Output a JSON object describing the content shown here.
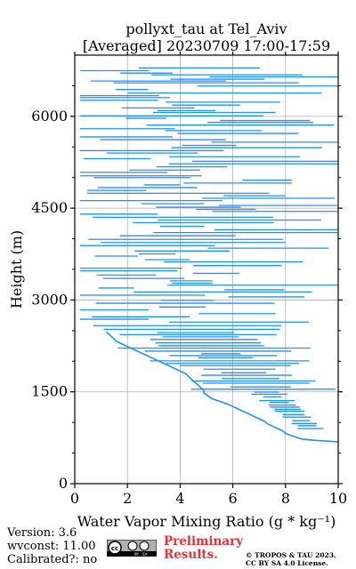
{
  "chart_data": {
    "type": "line",
    "title": "pollyxt_tau at Tel_Aviv",
    "subtitle": "[Averaged] 20230709 17:00-17:59",
    "xlabel": "Water Vapor Mixing Ratio",
    "xlabel_unit": "(g * kg⁻¹)",
    "ylabel": "Height (m)",
    "xlim": [
      0,
      10
    ],
    "ylim": [
      0,
      7000
    ],
    "xticks": [
      "0",
      "2",
      "4",
      "6",
      "8",
      "10"
    ],
    "yticks": [
      "0",
      "1500",
      "3000",
      "4500",
      "6000"
    ],
    "grid": true,
    "series_color": "#1e90ff",
    "series": [
      {
        "style": "line",
        "x": [
          10.0,
          9.8,
          9.4,
          9.0,
          8.6,
          8.4,
          8.2,
          8.0,
          7.9,
          7.7,
          7.5,
          7.3,
          7.2,
          7.0,
          6.8,
          6.6,
          6.4,
          6.2,
          6.0,
          5.8,
          5.6,
          5.4,
          5.2,
          5.1,
          5.0,
          4.9,
          4.9,
          4.8,
          4.7,
          4.6,
          4.5,
          4.4,
          4.3,
          4.2,
          4.0,
          3.8,
          3.6,
          3.4,
          3.2,
          3.0,
          2.8,
          2.6,
          2.4,
          2.2,
          2.0,
          1.8,
          1.6,
          1.5,
          1.4,
          1.3,
          1.2
        ],
        "y": [
          680,
          690,
          700,
          710,
          730,
          760,
          790,
          820,
          860,
          900,
          940,
          980,
          1020,
          1060,
          1100,
          1140,
          1180,
          1220,
          1260,
          1300,
          1330,
          1360,
          1390,
          1420,
          1450,
          1480,
          1520,
          1560,
          1600,
          1640,
          1680,
          1720,
          1760,
          1800,
          1840,
          1880,
          1920,
          1960,
          2000,
          2040,
          2080,
          2120,
          2160,
          2200,
          2240,
          2280,
          2320,
          2360,
          2400,
          2440,
          2480
        ]
      }
    ]
  },
  "footer": {
    "version": "Version: 3.6",
    "wvconst": "wvconst:  11.00",
    "calibrated": "Calibrated?: no",
    "prelim_line1": "Preliminary",
    "prelim_line2": "Results.",
    "copyright_line1": "© TROPOS & TAU 2023.",
    "copyright_line2": "CC BY SA 4.0 License.",
    "license_badge": "cc-by-sa-badge"
  }
}
